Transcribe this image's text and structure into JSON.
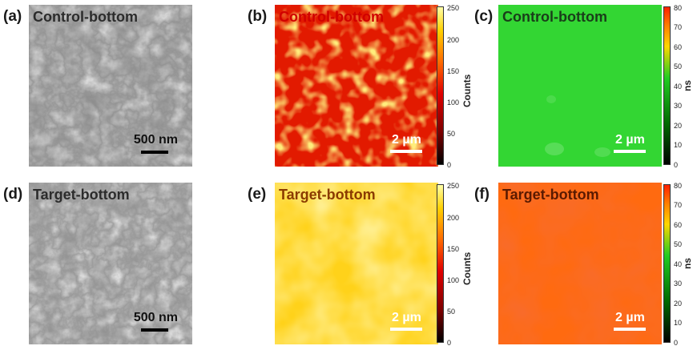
{
  "panels": {
    "a": {
      "letter": "(a)",
      "title": "Control-bottom",
      "scale": "500 nm"
    },
    "b": {
      "letter": "(b)",
      "title": "Control-bottom",
      "scale": "2 µm"
    },
    "c": {
      "letter": "(c)",
      "title": "Control-bottom",
      "scale": "2 µm"
    },
    "d": {
      "letter": "(d)",
      "title": "Target-bottom",
      "scale": "500 nm"
    },
    "e": {
      "letter": "(e)",
      "title": "Target-bottom",
      "scale": "2 µm"
    },
    "f": {
      "letter": "(f)",
      "title": "Target-bottom",
      "scale": "2 µm"
    }
  },
  "colorbars": {
    "counts": {
      "label": "Counts",
      "ticks": [
        "0",
        "50",
        "100",
        "150",
        "200",
        "250"
      ]
    },
    "ns": {
      "label": "ns",
      "ticks": [
        "0",
        "10",
        "20",
        "30",
        "40",
        "50",
        "60",
        "70",
        "80"
      ]
    }
  },
  "colors": {
    "counts_scale": [
      "#000000",
      "#7a0000",
      "#e00000",
      "#ff6a00",
      "#ffd000",
      "#ffffa8"
    ],
    "ns_scale": [
      "#000000",
      "#006600",
      "#22cc22",
      "#ffd700",
      "#ff8000",
      "#ff2000"
    ]
  }
}
